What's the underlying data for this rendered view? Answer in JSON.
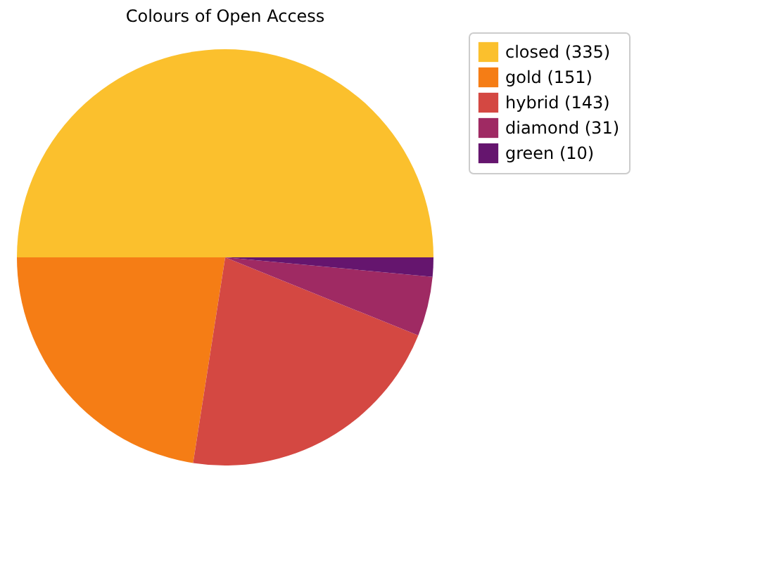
{
  "chart_data": {
    "type": "pie",
    "title": "Colours of Open Access",
    "categories": [
      "closed (335)",
      "gold (151)",
      "hybrid (143)",
      "diamond (31)",
      "green (10)"
    ],
    "values": [
      335,
      151,
      143,
      31,
      10
    ],
    "colors": [
      "#fbc02d",
      "#f57d15",
      "#d44842",
      "#9f2a63",
      "#65156e"
    ],
    "legend": "right"
  }
}
